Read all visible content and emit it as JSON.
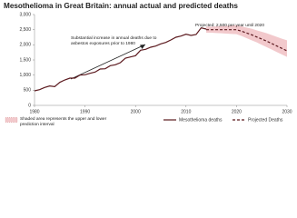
{
  "chart_data": {
    "type": "line",
    "title": "Mesothelioma in Great Britain: annual actual and predicted deaths",
    "annotations": [
      "Substantial increase in annual deaths due to asbestos exposures prior to 1980",
      "Projected: 2,500 per year until 2020"
    ],
    "xlim": [
      1980,
      2030
    ],
    "xticks": [
      1980,
      1990,
      2000,
      2010,
      2020,
      2030
    ],
    "ylim": [
      0,
      3000
    ],
    "yticks": [
      0,
      500,
      {
        "value": 1000,
        "label": "1,000"
      },
      {
        "value": 1500,
        "label": "1,500"
      },
      {
        "value": 2000,
        "label": "2,000"
      },
      {
        "value": 2500,
        "label": "2,500"
      },
      {
        "value": 3000,
        "label": "3,000"
      }
    ],
    "band": {
      "name": "Shaded area represents the upper and lower prediction interval",
      "color": "#f2c9cc",
      "x": [
        2014,
        2015,
        2016,
        2017,
        2018,
        2019,
        2020,
        2021,
        2022,
        2023,
        2024,
        2025,
        2026,
        2027,
        2028,
        2029,
        2030
      ],
      "upper": [
        2600,
        2600,
        2610,
        2620,
        2630,
        2640,
        2650,
        2610,
        2570,
        2530,
        2480,
        2430,
        2380,
        2320,
        2260,
        2200,
        2150
      ],
      "lower": [
        2400,
        2400,
        2390,
        2380,
        2370,
        2360,
        2350,
        2290,
        2220,
        2150,
        2080,
        2000,
        1920,
        1840,
        1760,
        1680,
        1600
      ]
    },
    "series": [
      {
        "name": "Mesothelioma deaths",
        "color": "#5c1a1f",
        "dashed": false,
        "x": [
          1980,
          1981,
          1982,
          1983,
          1984,
          1985,
          1986,
          1987,
          1988,
          1989,
          1990,
          1991,
          1992,
          1993,
          1994,
          1995,
          1996,
          1997,
          1998,
          1999,
          2000,
          2001,
          2002,
          2003,
          2004,
          2005,
          2006,
          2007,
          2008,
          2009,
          2010,
          2011,
          2012,
          2013,
          2014
        ],
        "values": [
          480,
          520,
          590,
          640,
          620,
          760,
          840,
          900,
          900,
          1000,
          1010,
          1060,
          1100,
          1200,
          1210,
          1310,
          1340,
          1410,
          1560,
          1600,
          1640,
          1820,
          1850,
          1920,
          1960,
          2030,
          2080,
          2160,
          2250,
          2290,
          2350,
          2310,
          2340,
          2560,
          2520
        ]
      },
      {
        "name": "Projected Deaths",
        "color": "#5c1a1f",
        "dashed": true,
        "x": [
          2014,
          2015,
          2016,
          2017,
          2018,
          2019,
          2020,
          2021,
          2022,
          2023,
          2024,
          2025,
          2026,
          2027,
          2028,
          2029,
          2030
        ],
        "values": [
          2500,
          2500,
          2500,
          2500,
          2500,
          2500,
          2500,
          2450,
          2390,
          2330,
          2260,
          2190,
          2120,
          2040,
          1960,
          1880,
          1800
        ]
      }
    ]
  }
}
